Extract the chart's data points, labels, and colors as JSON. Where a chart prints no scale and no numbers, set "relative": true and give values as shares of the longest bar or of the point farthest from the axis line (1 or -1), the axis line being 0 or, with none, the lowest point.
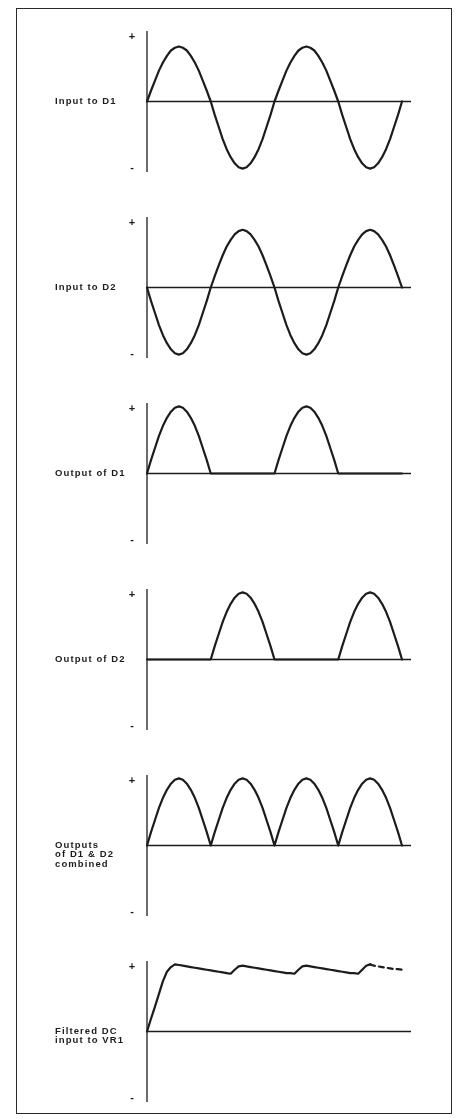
{
  "chart_data": [
    {
      "type": "line",
      "relative": true,
      "ylabel": "Input to D1",
      "annotations": [
        "+",
        "-"
      ],
      "categories": [
        null,
        null,
        null,
        null,
        null,
        null,
        null,
        null,
        null,
        null,
        null,
        null,
        null,
        null,
        null,
        null,
        null,
        null,
        null,
        null,
        null,
        null,
        null,
        null,
        null,
        null,
        null,
        null,
        null,
        null,
        null,
        null,
        null,
        null,
        null,
        null,
        null,
        null,
        null,
        null,
        null,
        null,
        null,
        null,
        null,
        null,
        null,
        null,
        null,
        null,
        null,
        null,
        null,
        null,
        null,
        null,
        null,
        null,
        null,
        null,
        null,
        null,
        null,
        null,
        null
      ],
      "color": "#1c1c1c",
      "values": [
        0,
        0.16,
        0.31,
        0.46,
        0.58,
        0.68,
        0.76,
        0.8,
        0.82,
        0.8,
        0.76,
        0.68,
        0.58,
        0.46,
        0.31,
        0.16,
        0,
        -0.2,
        -0.38,
        -0.56,
        -0.71,
        -0.83,
        -0.92,
        -0.98,
        -1,
        -0.98,
        -0.92,
        -0.83,
        -0.71,
        -0.56,
        -0.38,
        -0.2,
        0,
        0.16,
        0.31,
        0.46,
        0.58,
        0.68,
        0.76,
        0.8,
        0.82,
        0.8,
        0.76,
        0.68,
        0.58,
        0.46,
        0.31,
        0.16,
        0,
        -0.2,
        -0.38,
        -0.56,
        -0.71,
        -0.83,
        -0.92,
        -0.98,
        -1,
        -0.98,
        -0.92,
        -0.83,
        -0.71,
        -0.56,
        -0.38,
        -0.2,
        0
      ]
    },
    {
      "type": "line",
      "relative": true,
      "ylabel": "Input to D2",
      "annotations": [
        "+",
        "-"
      ],
      "categories": [
        null,
        null,
        null,
        null,
        null,
        null,
        null,
        null,
        null,
        null,
        null,
        null,
        null,
        null,
        null,
        null,
        null,
        null,
        null,
        null,
        null,
        null,
        null,
        null,
        null,
        null,
        null,
        null,
        null,
        null,
        null,
        null,
        null,
        null,
        null,
        null,
        null,
        null,
        null,
        null,
        null,
        null,
        null,
        null,
        null,
        null,
        null,
        null,
        null,
        null,
        null,
        null,
        null,
        null,
        null,
        null,
        null,
        null,
        null,
        null,
        null,
        null,
        null,
        null,
        null
      ],
      "color": "#1c1c1c",
      "values": [
        0,
        -0.2,
        -0.38,
        -0.56,
        -0.71,
        -0.83,
        -0.92,
        -0.98,
        -1,
        -0.98,
        -0.92,
        -0.83,
        -0.71,
        -0.56,
        -0.38,
        -0.2,
        0,
        0.17,
        0.33,
        0.48,
        0.61,
        0.71,
        0.79,
        0.84,
        0.86,
        0.84,
        0.79,
        0.71,
        0.61,
        0.48,
        0.33,
        0.17,
        0,
        -0.2,
        -0.38,
        -0.56,
        -0.71,
        -0.83,
        -0.92,
        -0.98,
        -1,
        -0.98,
        -0.92,
        -0.83,
        -0.71,
        -0.56,
        -0.38,
        -0.2,
        0,
        0.17,
        0.33,
        0.48,
        0.61,
        0.71,
        0.79,
        0.84,
        0.86,
        0.84,
        0.79,
        0.71,
        0.61,
        0.48,
        0.33,
        0.17,
        0
      ]
    },
    {
      "type": "line",
      "relative": true,
      "ylabel": "Output of D1",
      "annotations": [
        "+",
        "-"
      ],
      "categories": [
        null,
        null,
        null,
        null,
        null,
        null,
        null,
        null,
        null,
        null,
        null,
        null,
        null,
        null,
        null,
        null,
        null,
        null,
        null,
        null,
        null,
        null,
        null,
        null,
        null,
        null,
        null,
        null,
        null,
        null,
        null,
        null,
        null,
        null,
        null,
        null,
        null,
        null,
        null,
        null,
        null,
        null,
        null,
        null,
        null,
        null,
        null,
        null,
        null,
        null,
        null,
        null,
        null,
        null,
        null,
        null,
        null,
        null,
        null,
        null,
        null,
        null,
        null,
        null,
        null
      ],
      "color": "#1c1c1c",
      "values": [
        0,
        0.2,
        0.38,
        0.56,
        0.71,
        0.83,
        0.92,
        0.98,
        1,
        0.98,
        0.92,
        0.83,
        0.71,
        0.56,
        0.38,
        0.2,
        0,
        0,
        0,
        0,
        0,
        0,
        0,
        0,
        0,
        0,
        0,
        0,
        0,
        0,
        0,
        0,
        0,
        0.2,
        0.38,
        0.56,
        0.71,
        0.83,
        0.92,
        0.98,
        1,
        0.98,
        0.92,
        0.83,
        0.71,
        0.56,
        0.38,
        0.2,
        0,
        0,
        0,
        0,
        0,
        0,
        0,
        0,
        0,
        0,
        0,
        0,
        0,
        0,
        0,
        0,
        0
      ]
    },
    {
      "type": "line",
      "relative": true,
      "ylabel": "Output of D2",
      "annotations": [
        "+",
        "-"
      ],
      "categories": [
        null,
        null,
        null,
        null,
        null,
        null,
        null,
        null,
        null,
        null,
        null,
        null,
        null,
        null,
        null,
        null,
        null,
        null,
        null,
        null,
        null,
        null,
        null,
        null,
        null,
        null,
        null,
        null,
        null,
        null,
        null,
        null,
        null,
        null,
        null,
        null,
        null,
        null,
        null,
        null,
        null,
        null,
        null,
        null,
        null,
        null,
        null,
        null,
        null,
        null,
        null,
        null,
        null,
        null,
        null,
        null,
        null,
        null,
        null,
        null,
        null,
        null,
        null,
        null,
        null
      ],
      "color": "#1c1c1c",
      "values": [
        0,
        0,
        0,
        0,
        0,
        0,
        0,
        0,
        0,
        0,
        0,
        0,
        0,
        0,
        0,
        0,
        0,
        0.2,
        0.38,
        0.56,
        0.71,
        0.83,
        0.92,
        0.98,
        1,
        0.98,
        0.92,
        0.83,
        0.71,
        0.56,
        0.38,
        0.2,
        0,
        0,
        0,
        0,
        0,
        0,
        0,
        0,
        0,
        0,
        0,
        0,
        0,
        0,
        0,
        0,
        0,
        0.2,
        0.38,
        0.56,
        0.71,
        0.83,
        0.92,
        0.98,
        1,
        0.98,
        0.92,
        0.83,
        0.71,
        0.56,
        0.38,
        0.2,
        0
      ]
    },
    {
      "type": "line",
      "relative": true,
      "ylabel": "Outputs\nof D1 & D2\ncombined",
      "annotations": [
        "+",
        "-"
      ],
      "categories": [
        null,
        null,
        null,
        null,
        null,
        null,
        null,
        null,
        null,
        null,
        null,
        null,
        null,
        null,
        null,
        null,
        null,
        null,
        null,
        null,
        null,
        null,
        null,
        null,
        null,
        null,
        null,
        null,
        null,
        null,
        null,
        null,
        null,
        null,
        null,
        null,
        null,
        null,
        null,
        null,
        null,
        null,
        null,
        null,
        null,
        null,
        null,
        null,
        null,
        null,
        null,
        null,
        null,
        null,
        null,
        null,
        null,
        null,
        null,
        null,
        null,
        null,
        null,
        null,
        null
      ],
      "color": "#1c1c1c",
      "values": [
        0,
        0.2,
        0.38,
        0.56,
        0.71,
        0.83,
        0.92,
        0.98,
        1,
        0.98,
        0.92,
        0.83,
        0.71,
        0.56,
        0.38,
        0.2,
        0,
        0.2,
        0.38,
        0.56,
        0.71,
        0.83,
        0.92,
        0.98,
        1,
        0.98,
        0.92,
        0.83,
        0.71,
        0.56,
        0.38,
        0.2,
        0,
        0.2,
        0.38,
        0.56,
        0.71,
        0.83,
        0.92,
        0.98,
        1,
        0.98,
        0.92,
        0.83,
        0.71,
        0.56,
        0.38,
        0.2,
        0,
        0.2,
        0.38,
        0.56,
        0.71,
        0.83,
        0.92,
        0.98,
        1,
        0.98,
        0.92,
        0.83,
        0.71,
        0.56,
        0.38,
        0.2,
        0
      ]
    },
    {
      "type": "line",
      "relative": true,
      "ylabel": "Filtered DC\ninput to VR1",
      "annotations": [
        "+",
        "-"
      ],
      "categories": [
        null,
        null,
        null,
        null,
        null,
        null,
        null,
        null,
        null,
        null,
        null,
        null,
        null,
        null,
        null,
        null,
        null,
        null,
        null,
        null,
        null,
        null,
        null,
        null,
        null,
        null,
        null,
        null,
        null,
        null,
        null,
        null,
        null,
        null,
        null,
        null,
        null,
        null,
        null,
        null,
        null,
        null,
        null,
        null,
        null,
        null,
        null,
        null,
        null,
        null,
        null,
        null,
        null,
        null,
        null,
        null,
        null,
        null,
        null,
        null,
        null,
        null,
        null,
        null,
        null
      ],
      "series": [
        {
          "color": "#1c1c1c",
          "values": [
            0,
            0.19,
            0.37,
            0.56,
            0.75,
            0.89,
            0.96,
            1,
            0.99,
            0.98,
            0.97,
            0.96,
            0.95,
            0.94,
            0.93,
            0.92,
            0.91,
            0.9,
            0.89,
            0.88,
            0.87,
            0.86,
            0.92,
            0.97,
            0.98,
            0.97,
            0.96,
            0.95,
            0.94,
            0.93,
            0.92,
            0.91,
            0.9,
            0.89,
            0.88,
            0.87,
            0.87,
            0.86,
            0.92,
            0.97,
            0.98,
            0.97,
            0.96,
            0.95,
            0.94,
            0.93,
            0.92,
            0.91,
            0.9,
            0.89,
            0.88,
            0.87,
            0.87,
            0.86,
            0.92,
            0.98,
            1,
            null,
            null,
            null,
            null,
            null,
            null,
            null,
            null
          ]
        },
        {
          "color": "#1c1c1c",
          "line_style": "dashed",
          "values": [
            null,
            null,
            null,
            null,
            null,
            null,
            null,
            null,
            null,
            null,
            null,
            null,
            null,
            null,
            null,
            null,
            null,
            null,
            null,
            null,
            null,
            null,
            null,
            null,
            null,
            null,
            null,
            null,
            null,
            null,
            null,
            null,
            null,
            null,
            null,
            null,
            null,
            null,
            null,
            null,
            null,
            null,
            null,
            null,
            null,
            null,
            null,
            null,
            null,
            null,
            null,
            null,
            null,
            null,
            null,
            null,
            1,
            0.98,
            0.97,
            0.96,
            0.95,
            0.94,
            0.93,
            0.93,
            0.92
          ]
        }
      ]
    }
  ]
}
